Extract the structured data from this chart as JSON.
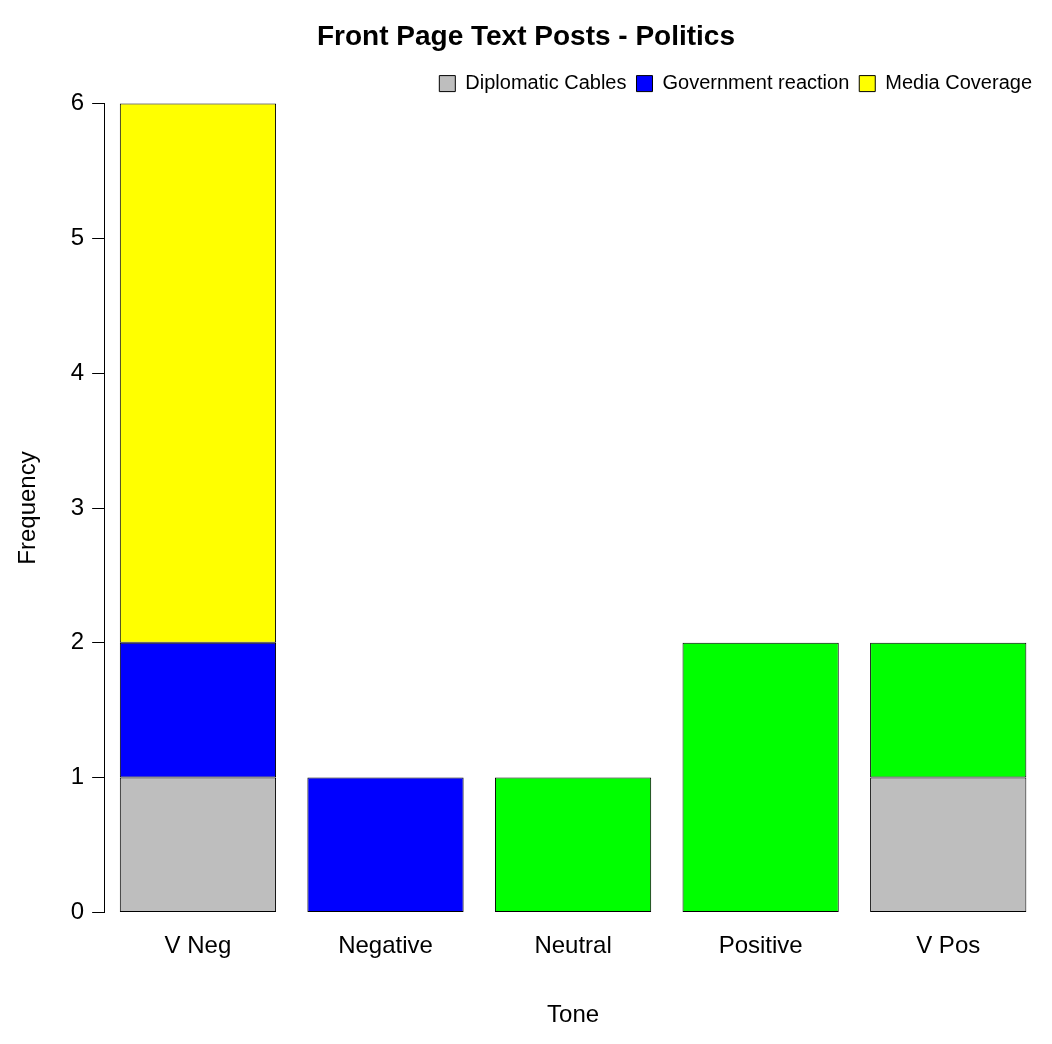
{
  "chart_data": {
    "type": "bar",
    "title": "Front Page Text Posts - Politics",
    "xlabel": "Tone",
    "ylabel": "Frequency",
    "categories": [
      "V Neg",
      "Negative",
      "Neutral",
      "Positive",
      "V Pos"
    ],
    "stacked": true,
    "ylim": [
      0,
      6
    ],
    "yticks": [
      0,
      1,
      2,
      3,
      4,
      5,
      6
    ],
    "grid": false,
    "legend": "top right",
    "series": [
      {
        "name": "Diplomatic Cables",
        "color": "#bebebe",
        "values": [
          1,
          0,
          0,
          0,
          1
        ]
      },
      {
        "name": "Government reaction",
        "color": "#0000ff",
        "values": [
          1,
          1,
          0,
          0,
          0
        ]
      },
      {
        "name": "Media Coverage",
        "color": "#ffff00",
        "values": [
          4,
          0,
          0,
          0,
          0
        ]
      },
      {
        "color": "#00ff00",
        "values": [
          0,
          0,
          1,
          2,
          1
        ]
      }
    ]
  }
}
